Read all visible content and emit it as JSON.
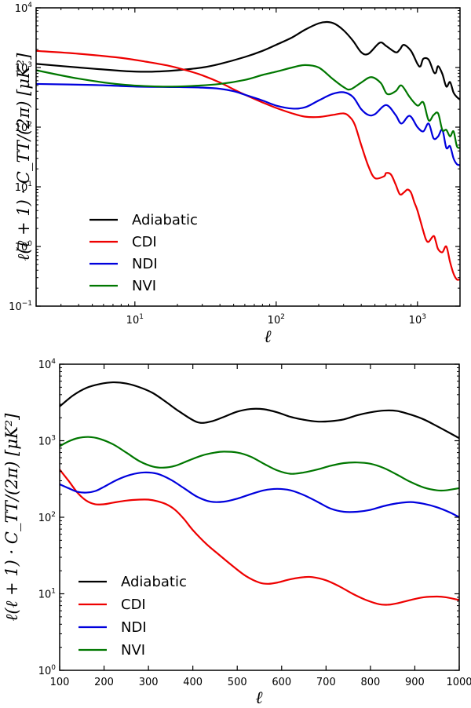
{
  "chart_data": [
    {
      "type": "line",
      "xscale": "log",
      "yscale": "log",
      "xlabel": "ℓ",
      "ylabel": "ℓ(ℓ + 1) · C_TT/(2π) [μK²]",
      "xlim": [
        2,
        2000
      ],
      "ylim": [
        0.1,
        10000
      ],
      "xticks": [
        {
          "value": 10,
          "base": "10",
          "exp": "1"
        },
        {
          "value": 100,
          "base": "10",
          "exp": "2"
        },
        {
          "value": 1000,
          "base": "10",
          "exp": "3"
        }
      ],
      "yticks": [
        {
          "value": 0.1,
          "base": "10",
          "exp": "−1"
        },
        {
          "value": 1,
          "base": "10",
          "exp": "0"
        },
        {
          "value": 10,
          "base": "10",
          "exp": "1"
        },
        {
          "value": 100,
          "base": "10",
          "exp": "2"
        },
        {
          "value": 1000,
          "base": "10",
          "exp": "3"
        },
        {
          "value": 10000,
          "base": "10",
          "exp": "4"
        }
      ],
      "legend_position": "lower-left",
      "series": [
        {
          "name": "Adiabatic",
          "color": "#000000",
          "x": [
            2,
            4,
            8,
            11,
            15,
            20,
            30,
            40,
            60,
            80,
            100,
            130,
            160,
            200,
            230,
            260,
            300,
            350,
            400,
            450,
            540,
            600,
            700,
            750,
            800,
            900,
            1000,
            1050,
            1100,
            1200,
            1300,
            1350,
            1400,
            1500,
            1600,
            1700,
            1800,
            1900,
            2000
          ],
          "y": [
            1150,
            1000,
            880,
            850,
            860,
            900,
            1000,
            1150,
            1500,
            1900,
            2400,
            3200,
            4300,
            5500,
            5800,
            5400,
            4200,
            2800,
            1800,
            1700,
            2600,
            2300,
            1800,
            2000,
            2400,
            1900,
            1150,
            1050,
            1400,
            1350,
            850,
            820,
            1050,
            780,
            480,
            570,
            380,
            320,
            290
          ]
        },
        {
          "name": "CDI",
          "color": "#ee0000",
          "x": [
            2,
            4,
            8,
            12,
            18,
            25,
            30,
            40,
            50,
            60,
            80,
            100,
            130,
            160,
            200,
            250,
            300,
            330,
            360,
            400,
            450,
            500,
            580,
            600,
            650,
            700,
            750,
            800,
            850,
            900,
            950,
            1000,
            1100,
            1150,
            1200,
            1300,
            1350,
            1400,
            1500,
            1600,
            1700,
            1800,
            1900,
            2000
          ],
          "y": [
            1900,
            1700,
            1450,
            1250,
            1050,
            850,
            740,
            560,
            430,
            350,
            260,
            210,
            170,
            150,
            148,
            160,
            170,
            150,
            110,
            50,
            22,
            14,
            15,
            17,
            16,
            11,
            7.5,
            8,
            9,
            8,
            5.5,
            4,
            1.8,
            1.3,
            1.2,
            1.5,
            1.2,
            0.9,
            0.8,
            1.0,
            0.55,
            0.35,
            0.28,
            0.28
          ]
        },
        {
          "name": "NDI",
          "color": "#0000dd",
          "x": [
            2,
            5,
            10,
            20,
            30,
            40,
            50,
            60,
            80,
            100,
            130,
            160,
            200,
            250,
            300,
            350,
            400,
            450,
            500,
            600,
            700,
            770,
            880,
            1000,
            1100,
            1200,
            1300,
            1400,
            1500,
            1600,
            1700,
            1800,
            1900,
            2000
          ],
          "y": [
            530,
            510,
            480,
            470,
            460,
            440,
            400,
            350,
            280,
            230,
            205,
            215,
            280,
            360,
            385,
            320,
            200,
            160,
            165,
            235,
            160,
            115,
            155,
            100,
            85,
            115,
            65,
            70,
            90,
            45,
            48,
            30,
            24,
            23
          ]
        },
        {
          "name": "NVI",
          "color": "#007700",
          "x": [
            2,
            4,
            8,
            15,
            25,
            40,
            60,
            80,
            100,
            130,
            160,
            200,
            250,
            300,
            335,
            400,
            470,
            550,
            610,
            700,
            770,
            880,
            1000,
            1100,
            1200,
            1300,
            1400,
            1500,
            1600,
            1700,
            1800,
            1900,
            2000
          ],
          "y": [
            900,
            650,
            520,
            480,
            490,
            530,
            620,
            750,
            850,
            1000,
            1100,
            1000,
            650,
            470,
            430,
            560,
            690,
            550,
            360,
            400,
            500,
            320,
            230,
            260,
            130,
            160,
            170,
            90,
            90,
            70,
            85,
            48,
            45
          ]
        }
      ]
    },
    {
      "type": "line",
      "xscale": "linear",
      "yscale": "log",
      "xlabel": "ℓ",
      "ylabel": "ℓ(ℓ + 1) · C_TT/(2π) [μK²]",
      "xlim": [
        100,
        1000
      ],
      "ylim": [
        1,
        10000
      ],
      "xticks": [
        {
          "value": 100,
          "label": "100"
        },
        {
          "value": 200,
          "label": "200"
        },
        {
          "value": 300,
          "label": "300"
        },
        {
          "value": 400,
          "label": "400"
        },
        {
          "value": 500,
          "label": "500"
        },
        {
          "value": 600,
          "label": "600"
        },
        {
          "value": 700,
          "label": "700"
        },
        {
          "value": 800,
          "label": "800"
        },
        {
          "value": 900,
          "label": "900"
        },
        {
          "value": 1000,
          "label": "1000"
        }
      ],
      "yticks": [
        {
          "value": 1,
          "base": "10",
          "exp": "0"
        },
        {
          "value": 10,
          "base": "10",
          "exp": "1"
        },
        {
          "value": 100,
          "base": "10",
          "exp": "2"
        },
        {
          "value": 1000,
          "base": "10",
          "exp": "3"
        },
        {
          "value": 10000,
          "base": "10",
          "exp": "4"
        }
      ],
      "legend_position": "lower-left",
      "series": [
        {
          "name": "Adiabatic",
          "color": "#000000",
          "x": [
            100,
            130,
            160,
            190,
            220,
            250,
            280,
            310,
            340,
            370,
            410,
            440,
            470,
            500,
            530,
            560,
            590,
            620,
            650,
            680,
            710,
            740,
            770,
            800,
            830,
            860,
            890,
            920,
            950,
            980,
            1000
          ],
          "y": [
            2800,
            3900,
            4900,
            5500,
            5800,
            5600,
            5000,
            4200,
            3200,
            2400,
            1750,
            1780,
            2050,
            2400,
            2600,
            2580,
            2350,
            2050,
            1880,
            1780,
            1800,
            1900,
            2150,
            2350,
            2480,
            2450,
            2200,
            1900,
            1550,
            1250,
            1080
          ]
        },
        {
          "name": "CDI",
          "color": "#ee0000",
          "x": [
            100,
            120,
            140,
            160,
            180,
            200,
            220,
            250,
            280,
            300,
            320,
            340,
            360,
            380,
            400,
            430,
            460,
            490,
            520,
            550,
            570,
            590,
            620,
            650,
            670,
            700,
            730,
            760,
            790,
            820,
            840,
            860,
            890,
            920,
            950,
            970,
            1000
          ],
          "y": [
            420,
            300,
            210,
            165,
            148,
            148,
            155,
            165,
            170,
            170,
            162,
            148,
            125,
            95,
            68,
            45,
            32,
            23,
            17,
            14,
            13.5,
            14,
            15.5,
            16.5,
            16.5,
            15,
            12.5,
            10,
            8.3,
            7.3,
            7.2,
            7.5,
            8.3,
            9,
            9.2,
            9,
            8.3
          ]
        },
        {
          "name": "NDI",
          "color": "#0000dd",
          "x": [
            100,
            120,
            140,
            160,
            180,
            200,
            230,
            260,
            290,
            320,
            350,
            380,
            410,
            440,
            470,
            500,
            530,
            560,
            590,
            620,
            650,
            680,
            710,
            740,
            770,
            800,
            830,
            860,
            890,
            920,
            950,
            980,
            1000
          ],
          "y": [
            270,
            240,
            215,
            210,
            220,
            250,
            310,
            360,
            385,
            370,
            310,
            240,
            185,
            160,
            160,
            175,
            200,
            225,
            235,
            225,
            195,
            160,
            130,
            118,
            118,
            125,
            140,
            152,
            158,
            150,
            135,
            115,
            100
          ]
        },
        {
          "name": "NVI",
          "color": "#007700",
          "x": [
            100,
            120,
            140,
            165,
            190,
            220,
            250,
            280,
            310,
            335,
            360,
            390,
            420,
            450,
            470,
            500,
            530,
            560,
            590,
            620,
            650,
            680,
            710,
            740,
            770,
            800,
            830,
            860,
            890,
            920,
            950,
            970,
            1000
          ],
          "y": [
            850,
            980,
            1080,
            1120,
            1060,
            900,
            700,
            540,
            460,
            445,
            470,
            550,
            640,
            700,
            720,
            700,
            620,
            500,
            410,
            370,
            385,
            420,
            470,
            510,
            520,
            500,
            440,
            360,
            290,
            245,
            225,
            225,
            240
          ]
        }
      ]
    }
  ]
}
